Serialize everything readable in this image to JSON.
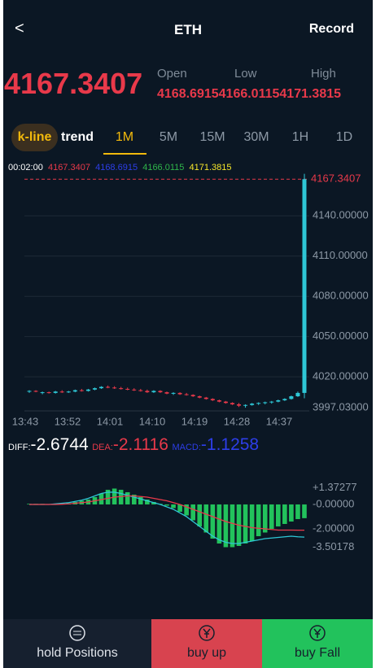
{
  "header": {
    "back": "<",
    "title": "ETH",
    "record": "Record"
  },
  "ticker": {
    "price": "4167.3407",
    "labels": [
      "Open",
      "Low",
      "High"
    ],
    "values": [
      "4168.6915",
      "4166.0115",
      "4171.3815"
    ]
  },
  "tabs": {
    "modes": [
      "k-line",
      "trend"
    ],
    "intervals": [
      "1M",
      "5M",
      "15M",
      "30M",
      "1H",
      "1D"
    ]
  },
  "kline": {
    "time": "00:02:00",
    "values": [
      "4167.3407",
      "4168.6915",
      "4166.0115",
      "4171.3815"
    ],
    "current": {
      "value": 4167.3407,
      "label": "4167.3407"
    },
    "ylim": [
      3994.6,
      4168.7
    ],
    "yticks": [
      {
        "value": 4140,
        "label": "4140.00000"
      },
      {
        "value": 4110,
        "label": "4110.00000"
      },
      {
        "value": 4080,
        "label": "4080.00000"
      },
      {
        "value": 4050,
        "label": "4050.00000"
      },
      {
        "value": 4020,
        "label": "4020.00000"
      },
      {
        "value": 3997.03,
        "label": "3997.03000"
      }
    ],
    "xticks": [
      "13:43",
      "13:52",
      "14:01",
      "14:10",
      "14:19",
      "14:28",
      "14:37"
    ],
    "candles": [
      [
        4009,
        4010,
        4008,
        4009.5
      ],
      [
        4009.5,
        4010,
        4008.5,
        4009
      ],
      [
        4008,
        4009,
        4007,
        4008.5
      ],
      [
        4008.5,
        4009,
        4007.5,
        4008
      ],
      [
        4008,
        4009.5,
        4007.5,
        4009
      ],
      [
        4009,
        4010,
        4008,
        4008.5
      ],
      [
        4008.5,
        4009.5,
        4008,
        4009
      ],
      [
        4009,
        4010.5,
        4008.5,
        4010
      ],
      [
        4010,
        4011,
        4009,
        4009.5
      ],
      [
        4009.5,
        4011,
        4009,
        4010.5
      ],
      [
        4010.5,
        4012,
        4010,
        4011.5
      ],
      [
        4011.5,
        4013,
        4011,
        4012.5
      ],
      [
        4012.5,
        4013.5,
        4011.5,
        4012
      ],
      [
        4012,
        4013,
        4011,
        4011.5
      ],
      [
        4011.5,
        4012.5,
        4010.5,
        4011
      ],
      [
        4011,
        4012,
        4010,
        4010.5
      ],
      [
        4010.5,
        4011.5,
        4009.5,
        4010
      ],
      [
        4010,
        4011,
        4009,
        4009.5
      ],
      [
        4009.5,
        4010.5,
        4008,
        4008.5
      ],
      [
        4008.5,
        4010,
        4008,
        4009.5
      ],
      [
        4009.5,
        4010,
        4008,
        4008.5
      ],
      [
        4008.5,
        4009,
        4007,
        4007.5
      ],
      [
        4007.5,
        4008.5,
        4006.5,
        4008
      ],
      [
        4008,
        4008.5,
        4006.5,
        4007
      ],
      [
        4007,
        4008,
        4006,
        4006.5
      ],
      [
        4006.5,
        4007,
        4005,
        4005.5
      ],
      [
        4005.5,
        4006,
        4004,
        4004.5
      ],
      [
        4004.5,
        4005,
        4003,
        4003.5
      ],
      [
        4003.5,
        4004,
        4002,
        4002.5
      ],
      [
        4002.5,
        4003,
        4001,
        4001.5
      ],
      [
        4001.5,
        4002,
        4000,
        4000.5
      ],
      [
        4000.5,
        4001,
        3999,
        3999.5
      ],
      [
        3999.5,
        4000.5,
        3997.5,
        3998.5
      ],
      [
        3998.5,
        3999.5,
        3997,
        3999
      ],
      [
        3999,
        4000.5,
        3998.5,
        4000
      ],
      [
        4000,
        4001,
        3999,
        4000.5
      ],
      [
        4000.5,
        4001.5,
        3999.5,
        4001
      ],
      [
        4001,
        4002,
        4000,
        4001.5
      ],
      [
        4001.5,
        4003,
        4001,
        4002.5
      ],
      [
        4002.5,
        4004,
        4002,
        4003.5
      ],
      [
        4003.5,
        4006,
        4003,
        4005.5
      ],
      [
        4005.5,
        4009,
        4005,
        4008
      ],
      [
        4008,
        4171.38,
        4004,
        4167.34
      ]
    ]
  },
  "macd": {
    "labels": [
      {
        "name": "DIFF:",
        "value": "-2.6744"
      },
      {
        "name": "DEA:",
        "value": "-2.1116"
      },
      {
        "name": "MACD:",
        "value": "-1.1258"
      }
    ],
    "ylim": [
      -4,
      2.33
    ],
    "yticks": [
      {
        "value": 1.37277,
        "label": "+1.37277"
      },
      {
        "value": 0,
        "label": "-0.00000"
      },
      {
        "value": -2,
        "label": "-2.00000"
      },
      {
        "value": -3.50178,
        "label": "-3.50178"
      }
    ],
    "bars": [
      0.05,
      0.05,
      0.05,
      0.03,
      0.05,
      0.08,
      0.1,
      0.2,
      0.3,
      0.4,
      0.6,
      0.9,
      1.2,
      1.3,
      1.2,
      1.0,
      0.8,
      0.6,
      0.4,
      0.2,
      0.05,
      -0.1,
      -0.3,
      -0.6,
      -0.9,
      -1.3,
      -1.8,
      -2.3,
      -2.8,
      -3.2,
      -3.5,
      -3.5,
      -3.4,
      -3.2,
      -3.0,
      -2.6,
      -2.3,
      -2.0,
      -1.8,
      -1.6,
      -1.4,
      -1.2,
      -1.1258
    ],
    "diff": [
      0,
      0,
      0,
      0,
      0.05,
      0.1,
      0.15,
      0.25,
      0.35,
      0.5,
      0.7,
      0.9,
      1.0,
      1.0,
      0.9,
      0.75,
      0.6,
      0.45,
      0.3,
      0.15,
      0,
      -0.2,
      -0.4,
      -0.7,
      -1.0,
      -1.4,
      -1.8,
      -2.2,
      -2.6,
      -2.9,
      -3.1,
      -3.2,
      -3.2,
      -3.1,
      -3.0,
      -2.9,
      -2.8,
      -2.75,
      -2.7,
      -2.65,
      -2.6,
      -2.65,
      -2.6744
    ],
    "dea": [
      0,
      0,
      0,
      0,
      0,
      0.02,
      0.05,
      0.1,
      0.15,
      0.2,
      0.3,
      0.4,
      0.5,
      0.6,
      0.65,
      0.7,
      0.7,
      0.65,
      0.6,
      0.5,
      0.4,
      0.3,
      0.15,
      0,
      -0.2,
      -0.4,
      -0.6,
      -0.8,
      -1.0,
      -1.2,
      -1.4,
      -1.55,
      -1.7,
      -1.8,
      -1.9,
      -1.95,
      -2.0,
      -2.05,
      -2.1,
      -2.1,
      -2.1,
      -2.11,
      -2.1116
    ]
  },
  "footer": {
    "buttons": [
      "hold Positions",
      "buy up",
      "buy Fall"
    ]
  }
}
